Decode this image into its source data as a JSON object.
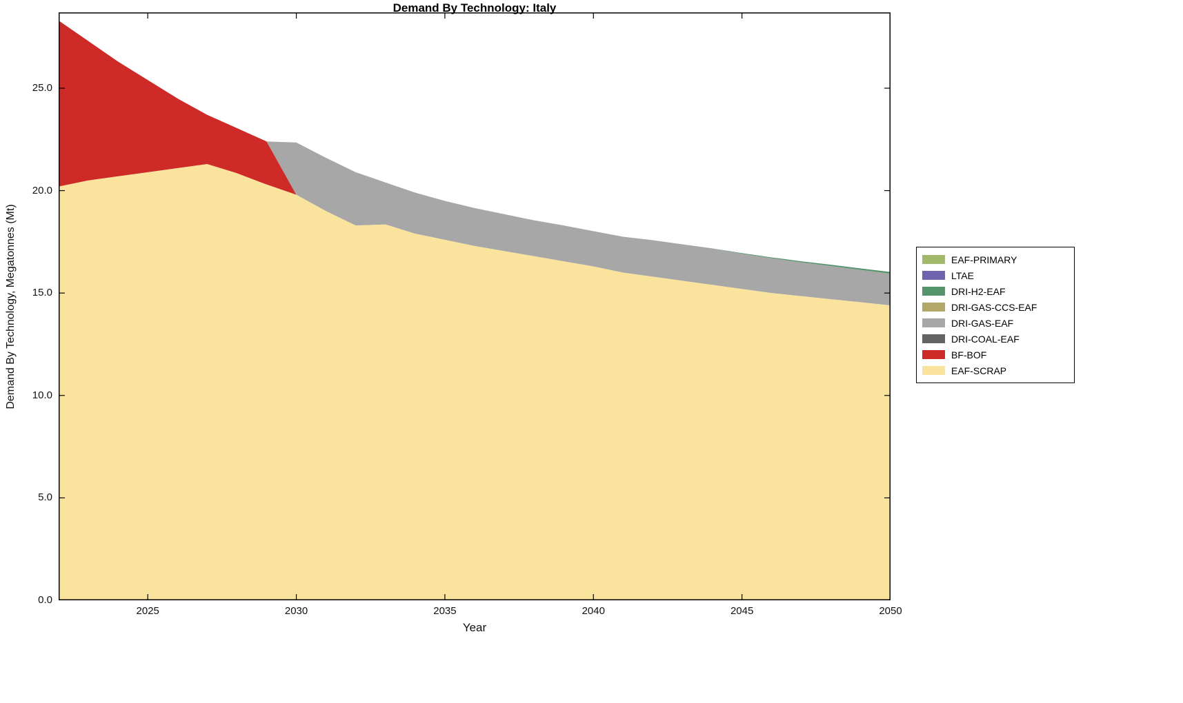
{
  "title": "Demand By Technology: Italy",
  "xlabel": "Year",
  "ylabel": "Demand By Technology, Megatonnes (Mt)",
  "chart_data": {
    "type": "area",
    "stacked": true,
    "grid": false,
    "legend_position": "right-outside",
    "x": [
      2022,
      2023,
      2024,
      2025,
      2026,
      2027,
      2028,
      2029,
      2030,
      2031,
      2032,
      2033,
      2034,
      2035,
      2036,
      2037,
      2038,
      2039,
      2040,
      2041,
      2042,
      2043,
      2044,
      2045,
      2046,
      2047,
      2048,
      2049,
      2050
    ],
    "xlim": [
      2022,
      2050
    ],
    "ylim": [
      0,
      28.7
    ],
    "x_tick_labels": [
      "2025",
      "2030",
      "2035",
      "2040",
      "2045",
      "2050"
    ],
    "x_tick_values": [
      2025,
      2030,
      2035,
      2040,
      2045,
      2050
    ],
    "y_tick_labels": [
      "0.0",
      "5.0",
      "10.0",
      "15.0",
      "20.0",
      "25.0"
    ],
    "y_tick_values": [
      0,
      5,
      10,
      15,
      20,
      25
    ],
    "legend_order_top_to_bottom": [
      "EAF-PRIMARY",
      "LTAE",
      "DRI-H2-EAF",
      "DRI-GAS-CCS-EAF",
      "DRI-GAS-EAF",
      "DRI-COAL-EAF",
      "BF-BOF",
      "EAF-SCRAP"
    ],
    "series": [
      {
        "name": "EAF-SCRAP",
        "color": "#fae49d",
        "values": [
          20.2,
          20.5,
          20.7,
          20.9,
          21.1,
          21.3,
          20.85,
          20.3,
          19.8,
          19.0,
          18.3,
          18.35,
          17.9,
          17.6,
          17.3,
          17.05,
          16.8,
          16.55,
          16.3,
          16.0,
          15.8,
          15.6,
          15.4,
          15.2,
          15.0,
          14.85,
          14.7,
          14.55,
          14.4
        ]
      },
      {
        "name": "BF-BOF",
        "color": "#ce2a27",
        "values": [
          8.1,
          6.8,
          5.6,
          4.5,
          3.4,
          2.4,
          2.2,
          2.1,
          0,
          0,
          0,
          0,
          0,
          0,
          0,
          0,
          0,
          0,
          0,
          0,
          0,
          0,
          0,
          0,
          0,
          0,
          0,
          0,
          0
        ]
      },
      {
        "name": "DRI-COAL-EAF",
        "color": "#636363",
        "values": [
          0,
          0,
          0,
          0,
          0,
          0,
          0,
          0,
          0,
          0,
          0,
          0,
          0,
          0,
          0,
          0,
          0,
          0,
          0,
          0,
          0,
          0,
          0,
          0,
          0,
          0,
          0,
          0,
          0
        ]
      },
      {
        "name": "DRI-GAS-EAF",
        "color": "#a7a7a7",
        "values": [
          0,
          0,
          0,
          0,
          0,
          0,
          0,
          0,
          2.55,
          2.6,
          2.6,
          2.05,
          2.0,
          1.9,
          1.85,
          1.8,
          1.75,
          1.75,
          1.72,
          1.75,
          1.78,
          1.78,
          1.78,
          1.72,
          1.7,
          1.65,
          1.62,
          1.58,
          1.55
        ]
      },
      {
        "name": "DRI-GAS-CCS-EAF",
        "color": "#b3a767",
        "values": [
          0,
          0,
          0,
          0,
          0,
          0,
          0,
          0,
          0,
          0,
          0,
          0,
          0,
          0,
          0,
          0,
          0,
          0,
          0,
          0,
          0,
          0,
          0,
          0,
          0,
          0,
          0,
          0,
          0
        ]
      },
      {
        "name": "DRI-H2-EAF",
        "color": "#55956b",
        "values": [
          0,
          0,
          0,
          0,
          0,
          0,
          0,
          0,
          0,
          0,
          0,
          0,
          0,
          0,
          0,
          0,
          0,
          0,
          0,
          0,
          0,
          0,
          0,
          0.03,
          0.04,
          0.05,
          0.06,
          0.07,
          0.08
        ]
      },
      {
        "name": "LTAE",
        "color": "#6f63ae",
        "values": [
          0,
          0,
          0,
          0,
          0,
          0,
          0,
          0,
          0,
          0,
          0,
          0,
          0,
          0,
          0,
          0,
          0,
          0,
          0,
          0,
          0,
          0,
          0,
          0,
          0,
          0,
          0,
          0,
          0
        ]
      },
      {
        "name": "EAF-PRIMARY",
        "color": "#a2b969",
        "values": [
          0,
          0,
          0,
          0,
          0,
          0,
          0,
          0,
          0,
          0,
          0,
          0,
          0,
          0,
          0,
          0,
          0,
          0,
          0,
          0,
          0,
          0,
          0,
          0,
          0,
          0,
          0,
          0,
          0
        ]
      }
    ],
    "axis_color": "#000000"
  }
}
